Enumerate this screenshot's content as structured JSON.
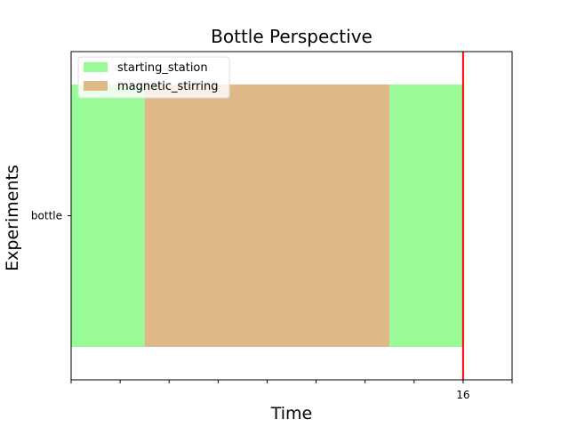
{
  "chart_data": {
    "type": "bar",
    "orientation": "horizontal",
    "stacked": true,
    "title": "Bottle Perspective",
    "xlabel": "Time",
    "ylabel": "Experiments",
    "categories": [
      "bottle"
    ],
    "xlim": [
      0,
      18
    ],
    "x_tick_values": [
      0,
      2,
      4,
      6,
      8,
      10,
      12,
      14,
      16,
      18
    ],
    "x_tick_labels": [
      "16"
    ],
    "x_tick_label_values": [
      16
    ],
    "segments": [
      {
        "category": "bottle",
        "series": "starting_station",
        "start": 0,
        "end": 3
      },
      {
        "category": "bottle",
        "series": "magnetic_stirring",
        "start": 3,
        "end": 13
      },
      {
        "category": "bottle",
        "series": "starting_station",
        "start": 13,
        "end": 16
      }
    ],
    "series": [
      {
        "name": "starting_station",
        "color": "#98fb98"
      },
      {
        "name": "magnetic_stirring",
        "color": "#deb887"
      }
    ],
    "vline": {
      "x": 16,
      "color": "#ff0000"
    },
    "legend_position": "top-left",
    "grid": false
  }
}
